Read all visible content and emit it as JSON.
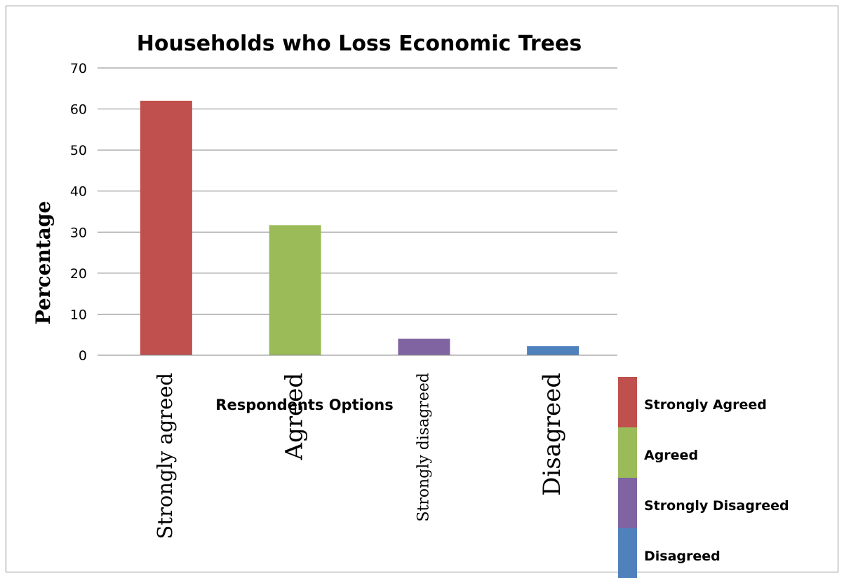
{
  "chart_data": {
    "type": "bar",
    "title": "Households who Loss Economic Trees",
    "xlabel": "Respondents Options",
    "ylabel": "Percentage",
    "ylim": [
      0,
      70
    ],
    "yticks": [
      0,
      10,
      20,
      30,
      40,
      50,
      60,
      70
    ],
    "grid": true,
    "categories": [
      "Strongly agreed",
      "Agreed",
      "Strongly disagreed",
      "Disagreed"
    ],
    "values": [
      62,
      31.7,
      4,
      2.2
    ],
    "colors": [
      "#c0504d",
      "#9bbb59",
      "#8064a2",
      "#4f81bd"
    ],
    "legend": {
      "placement": "bottom-right",
      "entries": [
        "Strongly Agreed",
        "Agreed",
        "Strongly Disagreed",
        "Disagreed"
      ]
    }
  }
}
